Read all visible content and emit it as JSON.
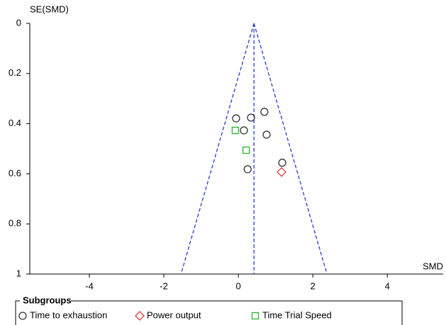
{
  "chart_data": {
    "type": "funnel",
    "y_label": "SE(SMD)",
    "x_label": "SMD",
    "xlim": [
      -5.6,
      5.5
    ],
    "xticks": [
      -4,
      -2,
      0,
      2,
      4
    ],
    "ylim": [
      0,
      1
    ],
    "yticks": [
      0,
      0.2,
      0.4,
      0.6,
      0.8,
      1
    ],
    "y_inverted": true,
    "pooled_smd": 0.42,
    "funnel_z": 1.96,
    "funnel_color": "#2b3bd0",
    "legend_title": "Subgroups",
    "series": [
      {
        "name": "Time to exhaustion",
        "color": "#333333",
        "marker": "circle",
        "x": [
          -0.06,
          0.34,
          0.7,
          0.15,
          0.76,
          1.18,
          0.25
        ],
        "values": [
          0.379,
          0.376,
          0.353,
          0.427,
          0.444,
          0.556,
          0.582
        ]
      },
      {
        "name": "Power output",
        "color": "#d93a3a",
        "marker": "diamond",
        "x": [
          1.16
        ],
        "values": [
          0.593
        ]
      },
      {
        "name": "Time Trial Speed",
        "color": "#2db52d",
        "marker": "square",
        "x": [
          -0.08,
          0.21
        ],
        "values": [
          0.427,
          0.506
        ]
      }
    ]
  }
}
